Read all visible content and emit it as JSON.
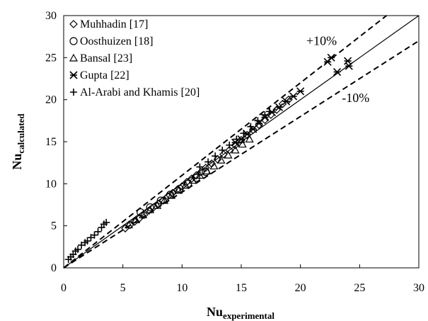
{
  "chart_data": {
    "type": "scatter",
    "xlabel": {
      "main": "Nu",
      "sub": "experimental"
    },
    "ylabel": {
      "main": "Nu",
      "sub": "calculated"
    },
    "xlim": [
      0,
      30
    ],
    "ylim": [
      0,
      30
    ],
    "xticks": [
      "0",
      "5",
      "10",
      "15",
      "20",
      "25",
      "30"
    ],
    "yticks": [
      "0",
      "5",
      "10",
      "15",
      "20",
      "25",
      "30"
    ],
    "grid": false,
    "legend_position": "top-left",
    "annotations": [
      {
        "text": "+10%",
        "x": 20.5,
        "y": 26.5
      },
      {
        "text": "-10%",
        "x": 23.5,
        "y": 19.7
      }
    ],
    "reference_lines": [
      {
        "label": "y = x",
        "style": "solid",
        "slope": 1.0
      },
      {
        "label": "+10%",
        "style": "dashed",
        "slope": 1.1
      },
      {
        "label": "-10%",
        "style": "dashed",
        "slope": 0.9
      }
    ],
    "series": [
      {
        "name": "Muhhadin [17]",
        "marker": "diamond",
        "points": [
          [
            5.2,
            4.7
          ],
          [
            5.6,
            5.1
          ],
          [
            6.0,
            5.5
          ],
          [
            6.4,
            5.9
          ],
          [
            6.8,
            6.3
          ],
          [
            7.2,
            6.8
          ],
          [
            7.6,
            7.2
          ],
          [
            8.0,
            7.6
          ],
          [
            8.4,
            8.0
          ],
          [
            8.8,
            8.5
          ],
          [
            9.2,
            8.9
          ],
          [
            9.6,
            9.3
          ],
          [
            10.0,
            9.7
          ],
          [
            10.4,
            10.2
          ],
          [
            10.8,
            10.6
          ],
          [
            11.2,
            11.0
          ],
          [
            11.6,
            11.4
          ],
          [
            12.0,
            11.9
          ],
          [
            12.5,
            12.4
          ],
          [
            13.0,
            12.9
          ],
          [
            13.5,
            13.5
          ],
          [
            14.0,
            14.0
          ],
          [
            14.5,
            14.6
          ],
          [
            15.0,
            15.2
          ],
          [
            15.5,
            15.8
          ],
          [
            16.0,
            16.4
          ],
          [
            16.5,
            17.0
          ],
          [
            17.0,
            17.6
          ],
          [
            17.5,
            18.2
          ],
          [
            18.0,
            18.8
          ],
          [
            18.5,
            19.5
          ],
          [
            19.0,
            20.0
          ]
        ]
      },
      {
        "name": "Oosthuizen [18]",
        "marker": "circle",
        "points": [
          [
            6.5,
            6.6
          ],
          [
            7.3,
            7.2
          ],
          [
            8.2,
            8.0
          ],
          [
            9.0,
            8.7
          ],
          [
            9.8,
            9.4
          ],
          [
            10.5,
            10.0
          ],
          [
            11.2,
            10.7
          ],
          [
            12.0,
            11.4
          ]
        ]
      },
      {
        "name": "Bansal [23]",
        "marker": "triangle",
        "points": [
          [
            5.5,
            5.1
          ],
          [
            6.1,
            5.7
          ],
          [
            6.7,
            6.3
          ],
          [
            7.3,
            6.9
          ],
          [
            7.9,
            7.4
          ],
          [
            8.5,
            8.0
          ],
          [
            9.1,
            8.6
          ],
          [
            9.7,
            9.2
          ],
          [
            10.3,
            9.8
          ],
          [
            10.9,
            10.4
          ],
          [
            11.5,
            11.0
          ],
          [
            12.1,
            11.5
          ],
          [
            12.7,
            12.1
          ],
          [
            13.3,
            12.8
          ],
          [
            13.9,
            13.4
          ],
          [
            14.5,
            14.0
          ],
          [
            15.1,
            14.7
          ],
          [
            15.7,
            15.3
          ]
        ]
      },
      {
        "name": "Gupta [22]",
        "marker": "asterisk",
        "points": [
          [
            14.5,
            14.9
          ],
          [
            15.0,
            15.3
          ],
          [
            15.5,
            15.9
          ],
          [
            16.0,
            16.5
          ],
          [
            16.5,
            17.2
          ],
          [
            17.0,
            17.9
          ],
          [
            17.6,
            18.5
          ],
          [
            18.2,
            19.1
          ],
          [
            18.8,
            19.8
          ],
          [
            19.4,
            20.4
          ],
          [
            20.0,
            21.0
          ],
          [
            22.3,
            24.5
          ],
          [
            22.6,
            25.0
          ],
          [
            23.1,
            23.3
          ],
          [
            24.0,
            24.6
          ],
          [
            24.1,
            24.0
          ]
        ]
      },
      {
        "name": "Al-Arabi and Khamis [20]",
        "marker": "plus",
        "points": [
          [
            0.4,
            1.0
          ],
          [
            0.6,
            1.3
          ],
          [
            0.8,
            1.6
          ],
          [
            1.0,
            2.0
          ],
          [
            1.2,
            2.2
          ],
          [
            1.5,
            2.7
          ],
          [
            1.8,
            3.0
          ],
          [
            2.0,
            3.2
          ],
          [
            2.3,
            3.6
          ],
          [
            2.6,
            3.9
          ],
          [
            2.9,
            4.3
          ],
          [
            3.2,
            4.8
          ],
          [
            3.4,
            5.2
          ],
          [
            3.6,
            5.4
          ],
          [
            11.5,
            12.0
          ],
          [
            12.2,
            12.6
          ],
          [
            12.8,
            13.3
          ],
          [
            13.4,
            14.0
          ],
          [
            14.0,
            14.6
          ],
          [
            14.6,
            15.3
          ],
          [
            15.2,
            16.0
          ],
          [
            15.8,
            16.8
          ],
          [
            16.4,
            17.5
          ],
          [
            17.0,
            18.2
          ],
          [
            17.4,
            18.6
          ]
        ]
      }
    ]
  }
}
